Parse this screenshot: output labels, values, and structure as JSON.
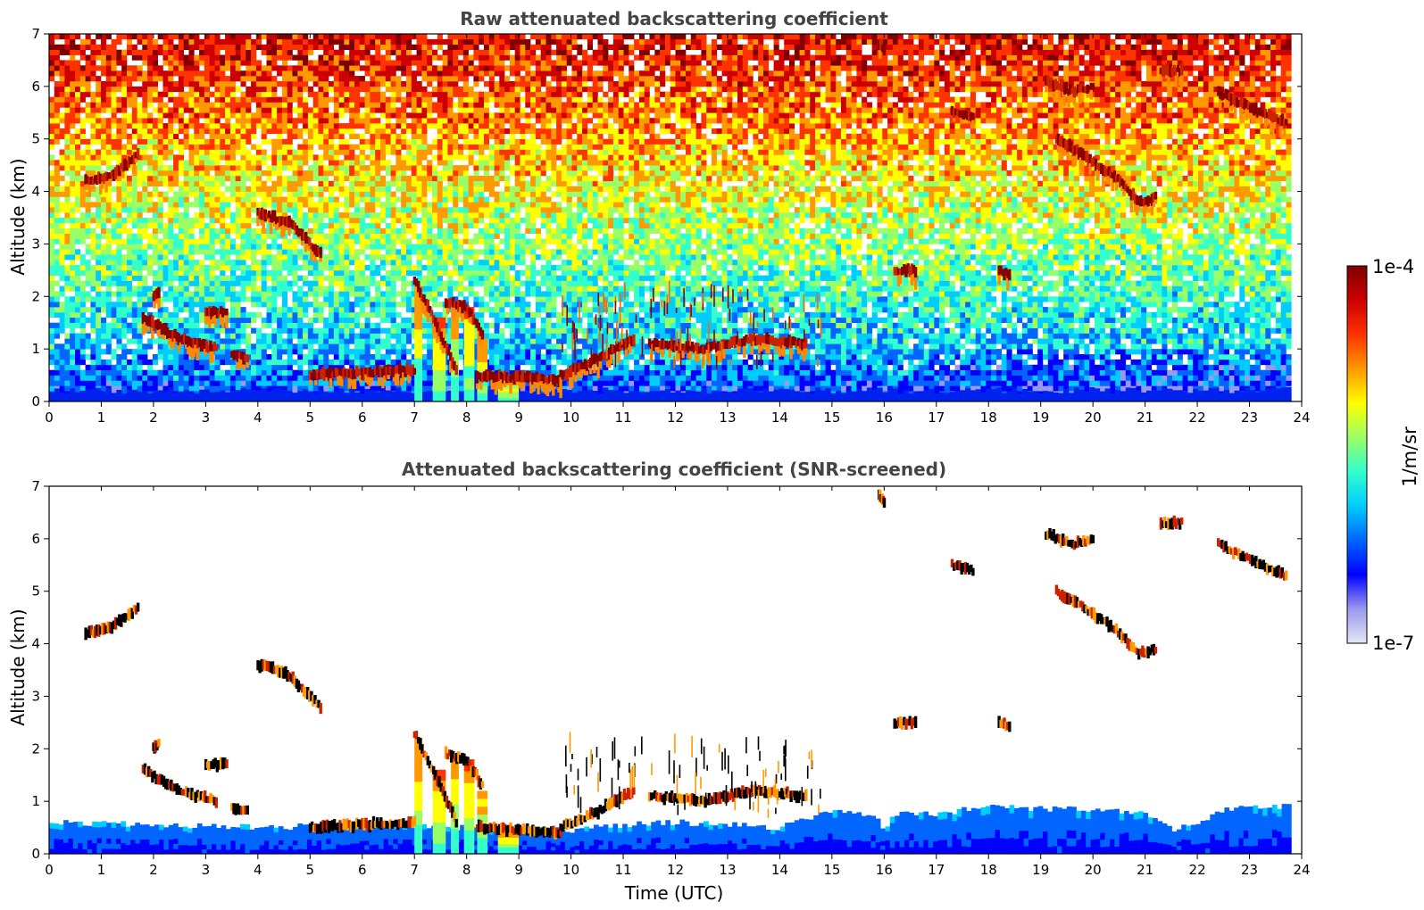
{
  "chart_data": [
    {
      "type": "heatmap",
      "title": "Raw attenuated backscattering coefficient",
      "xlabel": "",
      "ylabel": "Altitude (km)",
      "xlim": [
        0,
        24
      ],
      "ylim": [
        0,
        7
      ],
      "xticks": [
        0,
        1,
        2,
        3,
        4,
        5,
        6,
        7,
        8,
        9,
        10,
        11,
        12,
        13,
        14,
        15,
        16,
        17,
        18,
        19,
        20,
        21,
        22,
        23,
        24
      ],
      "yticks": [
        0,
        1,
        2,
        3,
        4,
        5,
        6,
        7
      ],
      "grid": false,
      "data_end_time": 23.8,
      "cloud_layers": [
        {
          "t": [
            0.7,
            1.2,
            1.7
          ],
          "alt": [
            4.2,
            4.3,
            4.7
          ]
        },
        {
          "t": [
            4.0,
            4.6,
            5.2
          ],
          "alt": [
            3.6,
            3.4,
            2.8
          ]
        },
        {
          "t": [
            1.8,
            2.5,
            3.2
          ],
          "alt": [
            1.6,
            1.2,
            1.0
          ]
        },
        {
          "t": [
            2.0,
            2.1
          ],
          "alt": [
            2.0,
            2.1
          ]
        },
        {
          "t": [
            3.0,
            3.4
          ],
          "alt": [
            1.7,
            1.7
          ]
        },
        {
          "t": [
            3.5,
            3.8
          ],
          "alt": [
            0.9,
            0.8
          ]
        },
        {
          "t": [
            5.0,
            6.0,
            7.0
          ],
          "alt": [
            0.5,
            0.55,
            0.6
          ]
        },
        {
          "t": [
            7.0,
            7.4,
            7.8
          ],
          "alt": [
            2.3,
            1.5,
            0.6
          ]
        },
        {
          "t": [
            7.6,
            8.0,
            8.3
          ],
          "alt": [
            1.9,
            1.8,
            1.3
          ]
        },
        {
          "t": [
            8.2,
            9.0,
            9.8
          ],
          "alt": [
            0.5,
            0.45,
            0.4
          ]
        },
        {
          "t": [
            9.8,
            10.5,
            11.2
          ],
          "alt": [
            0.5,
            0.8,
            1.2
          ]
        },
        {
          "t": [
            11.5,
            12.5,
            13.5,
            14.5
          ],
          "alt": [
            1.1,
            1.0,
            1.2,
            1.1
          ]
        },
        {
          "t": [
            16.2,
            16.6
          ],
          "alt": [
            2.5,
            2.5
          ]
        },
        {
          "t": [
            17.3,
            17.7
          ],
          "alt": [
            5.5,
            5.4
          ]
        },
        {
          "t": [
            18.2,
            18.4
          ],
          "alt": [
            2.5,
            2.4
          ]
        },
        {
          "t": [
            19.1,
            19.6,
            20.0
          ],
          "alt": [
            6.1,
            5.9,
            6.0
          ]
        },
        {
          "t": [
            19.3,
            19.8,
            20.4,
            20.9,
            21.2
          ],
          "alt": [
            5.0,
            4.7,
            4.3,
            3.8,
            3.9
          ]
        },
        {
          "t": [
            21.3,
            21.7
          ],
          "alt": [
            6.3,
            6.3
          ]
        },
        {
          "t": [
            22.4,
            23.0,
            23.7
          ],
          "alt": [
            5.9,
            5.6,
            5.3
          ]
        },
        {
          "t": [
            15.9,
            16.0
          ],
          "alt": [
            6.8,
            6.7
          ]
        }
      ]
    },
    {
      "type": "heatmap",
      "title": "Attenuated backscattering coefficient (SNR-screened)",
      "xlabel": "Time (UTC)",
      "ylabel": "Altitude (km)",
      "xlim": [
        0,
        24
      ],
      "ylim": [
        0,
        7
      ],
      "xticks": [
        0,
        1,
        2,
        3,
        4,
        5,
        6,
        7,
        8,
        9,
        10,
        11,
        12,
        13,
        14,
        15,
        16,
        17,
        18,
        19,
        20,
        21,
        22,
        23,
        24
      ],
      "yticks": [
        0,
        1,
        2,
        3,
        4,
        5,
        6,
        7
      ],
      "grid": false,
      "boundary_layer_top": {
        "t": [
          0,
          2,
          4,
          6,
          8,
          10,
          11,
          12,
          14,
          15,
          15.9,
          16.0,
          16.2,
          17,
          18,
          19,
          20,
          21,
          21.6,
          21.9,
          22.5,
          23,
          23.8
        ],
        "alt": [
          0.6,
          0.55,
          0.5,
          0.55,
          0.5,
          0.45,
          0.55,
          0.6,
          0.5,
          0.8,
          0.7,
          0.35,
          0.75,
          0.75,
          0.9,
          0.85,
          0.85,
          0.8,
          0.45,
          0.55,
          0.85,
          0.9,
          0.9
        ]
      }
    }
  ],
  "colorbar": {
    "label": "1/m/sr",
    "max_label": "1e-4",
    "min_label": "1e-7",
    "scale": "log",
    "colormap": "jet",
    "colors": [
      "#e6e6f5",
      "#9999ee",
      "#0000ff",
      "#0066ff",
      "#00ccff",
      "#33ffcc",
      "#99ff66",
      "#ffff00",
      "#ff9900",
      "#ff3300",
      "#cc0000",
      "#800000"
    ]
  }
}
